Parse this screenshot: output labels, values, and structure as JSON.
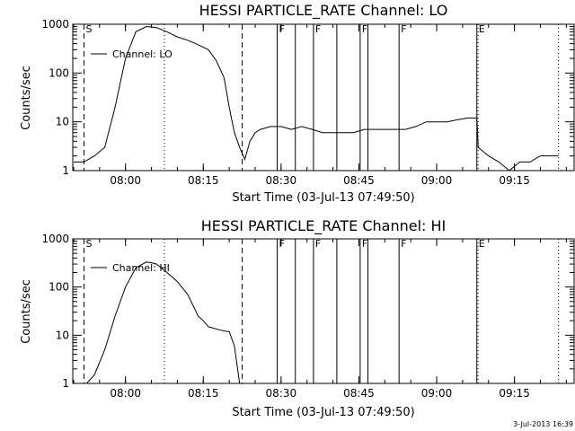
{
  "footer": {
    "timestamp": "3-Jul-2013 16:39"
  },
  "chart_data": [
    {
      "type": "line",
      "title": "HESSI PARTICLE_RATE Channel: LO",
      "xlabel": "Start Time (03-Jul-13 07:49:50)",
      "ylabel": "Counts/sec",
      "yscale": "log",
      "ylim": [
        1,
        1000
      ],
      "xlim": [
        "07:49:50",
        "09:26:30"
      ],
      "x_ticks": [
        "08:00",
        "08:15",
        "08:30",
        "08:45",
        "09:00",
        "09:15"
      ],
      "y_ticks": [
        "1",
        "10",
        "100",
        "1000"
      ],
      "legend": {
        "entries": [
          "Channel: LO"
        ],
        "placement": "top-left"
      },
      "markers": [
        {
          "time": "07:52:00",
          "style": "dashed",
          "label": "S"
        },
        {
          "time": "08:07:30",
          "style": "dotted",
          "label": ""
        },
        {
          "time": "08:22:30",
          "style": "dashed",
          "label": ""
        },
        {
          "time": "08:29:15",
          "style": "solid",
          "label": "F"
        },
        {
          "time": "08:32:45",
          "style": "solid",
          "label": ""
        },
        {
          "time": "08:36:15",
          "style": "solid",
          "label": "F"
        },
        {
          "time": "08:40:45",
          "style": "solid",
          "label": ""
        },
        {
          "time": "08:45:15",
          "style": "solid",
          "label": "F"
        },
        {
          "time": "08:46:45",
          "style": "solid",
          "label": ""
        },
        {
          "time": "08:52:45",
          "style": "solid",
          "label": "F"
        },
        {
          "time": "09:07:45",
          "style": "solid",
          "label": "E"
        },
        {
          "time": "09:08:00",
          "style": "dotted",
          "label": ""
        },
        {
          "time": "09:23:30",
          "style": "dotted",
          "label": ""
        }
      ],
      "series": [
        {
          "name": "Channel: LO",
          "x": [
            "07:50:00",
            "07:52:00",
            "07:54:00",
            "07:56:00",
            "07:58:00",
            "08:00:00",
            "08:02:00",
            "08:04:00",
            "08:06:00",
            "08:08:00",
            "08:10:00",
            "08:12:00",
            "08:14:00",
            "08:16:00",
            "08:17:30",
            "08:19:00",
            "08:20:00",
            "08:21:00",
            "08:22:00",
            "08:23:00",
            "08:24:00",
            "08:25:00",
            "08:26:00",
            "08:28:00",
            "08:30:00",
            "08:32:00",
            "08:34:00",
            "08:36:00",
            "08:38:00",
            "08:40:00",
            "08:42:00",
            "08:44:00",
            "08:46:00",
            "08:48:00",
            "08:50:00",
            "08:52:00",
            "08:54:00",
            "08:56:00",
            "08:58:00",
            "09:00:00",
            "09:02:00",
            "09:04:00",
            "09:06:00",
            "09:07:45",
            "09:08:00",
            "09:10:00",
            "09:12:00",
            "09:14:00",
            "09:16:00",
            "09:18:00",
            "09:20:00",
            "09:22:00",
            "09:23:30"
          ],
          "y": [
            1.5,
            1.5,
            2,
            3,
            20,
            200,
            700,
            900,
            850,
            700,
            550,
            470,
            380,
            300,
            180,
            80,
            20,
            6,
            3,
            1.7,
            4,
            6,
            7,
            8,
            8,
            7,
            8,
            7,
            6,
            6,
            6,
            6,
            7,
            7,
            7,
            7,
            7,
            8,
            10,
            10,
            10,
            11,
            12,
            12,
            3,
            2,
            1.5,
            1,
            1.5,
            1.5,
            2,
            2,
            2
          ]
        }
      ]
    },
    {
      "type": "line",
      "title": "HESSI PARTICLE_RATE Channel: HI",
      "xlabel": "Start Time (03-Jul-13 07:49:50)",
      "ylabel": "Counts/sec",
      "yscale": "log",
      "ylim": [
        1,
        1000
      ],
      "xlim": [
        "07:49:50",
        "09:26:30"
      ],
      "x_ticks": [
        "08:00",
        "08:15",
        "08:30",
        "08:45",
        "09:00",
        "09:15"
      ],
      "y_ticks": [
        "1",
        "10",
        "100",
        "1000"
      ],
      "legend": {
        "entries": [
          "Channel: HI"
        ],
        "placement": "top-left"
      },
      "markers": [
        {
          "time": "07:52:00",
          "style": "dashed",
          "label": "S"
        },
        {
          "time": "08:07:30",
          "style": "dotted",
          "label": ""
        },
        {
          "time": "08:22:30",
          "style": "dashed",
          "label": ""
        },
        {
          "time": "08:29:15",
          "style": "solid",
          "label": "F"
        },
        {
          "time": "08:32:45",
          "style": "solid",
          "label": ""
        },
        {
          "time": "08:36:15",
          "style": "solid",
          "label": "F"
        },
        {
          "time": "08:40:45",
          "style": "solid",
          "label": ""
        },
        {
          "time": "08:45:15",
          "style": "solid",
          "label": "F"
        },
        {
          "time": "08:46:45",
          "style": "solid",
          "label": ""
        },
        {
          "time": "08:52:45",
          "style": "solid",
          "label": "F"
        },
        {
          "time": "09:07:45",
          "style": "solid",
          "label": "E"
        },
        {
          "time": "09:08:00",
          "style": "dotted",
          "label": ""
        },
        {
          "time": "09:23:30",
          "style": "dotted",
          "label": ""
        }
      ],
      "series": [
        {
          "name": "Channel: HI",
          "x": [
            "07:52:30",
            "07:54:00",
            "07:56:00",
            "07:58:00",
            "08:00:00",
            "08:02:00",
            "08:04:00",
            "08:05:00",
            "08:06:00",
            "08:08:00",
            "08:10:00",
            "08:12:00",
            "08:14:00",
            "08:15:00",
            "08:16:00",
            "08:18:00",
            "08:19:30",
            "08:20:00",
            "08:21:00",
            "08:22:00"
          ],
          "y": [
            1,
            1.5,
            5,
            25,
            100,
            250,
            330,
            320,
            300,
            200,
            130,
            70,
            25,
            20,
            15,
            13,
            12,
            12,
            6,
            1
          ]
        }
      ]
    }
  ]
}
